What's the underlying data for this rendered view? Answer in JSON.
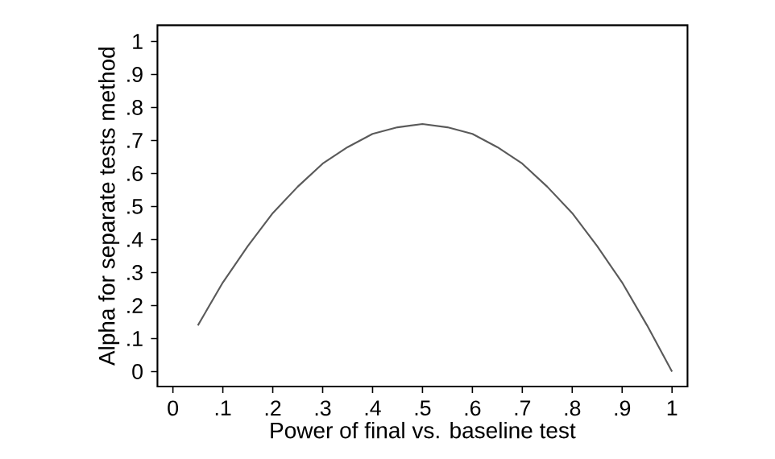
{
  "chart_data": {
    "type": "line",
    "xlabel": "Power of final vs. baseline test",
    "ylabel": "Alpha for separate tests method",
    "x": [
      0.05,
      0.1,
      0.15,
      0.2,
      0.25,
      0.3,
      0.35,
      0.4,
      0.45,
      0.5,
      0.55,
      0.6,
      0.65,
      0.7,
      0.75,
      0.8,
      0.85,
      0.9,
      0.95,
      1
    ],
    "series": [
      {
        "color": "#5a5a5a",
        "values": [
          0.14,
          0.27,
          0.38,
          0.48,
          0.56,
          0.63,
          0.68,
          0.72,
          0.74,
          0.75,
          0.74,
          0.72,
          0.68,
          0.63,
          0.56,
          0.48,
          0.38,
          0.27,
          0.14,
          0
        ]
      }
    ],
    "xlim": [
      -0.031,
      1.031
    ],
    "ylim": [
      -0.045,
      1.049
    ],
    "xticks": [
      0,
      {
        "value": 0.1,
        "label": ".1"
      },
      {
        "value": 0.2,
        "label": ".2"
      },
      {
        "value": 0.3,
        "label": ".3"
      },
      {
        "value": 0.4,
        "label": ".4"
      },
      {
        "value": 0.5,
        "label": ".5"
      },
      {
        "value": 0.6,
        "label": ".6"
      },
      {
        "value": 0.7,
        "label": ".7"
      },
      {
        "value": 0.8,
        "label": ".8"
      },
      {
        "value": 0.9,
        "label": ".9"
      },
      1
    ],
    "yticks": [
      0,
      {
        "value": 0.1,
        "label": ".1"
      },
      {
        "value": 0.2,
        "label": ".2"
      },
      {
        "value": 0.3,
        "label": ".3"
      },
      {
        "value": 0.4,
        "label": ".4"
      },
      {
        "value": 0.5,
        "label": ".5"
      },
      {
        "value": 0.6,
        "label": ".6"
      },
      {
        "value": 0.7,
        "label": ".7"
      },
      {
        "value": 0.8,
        "label": ".8"
      },
      {
        "value": 0.9,
        "label": ".9"
      },
      1
    ],
    "grid": false,
    "marker": "none",
    "line_style": "solid"
  }
}
